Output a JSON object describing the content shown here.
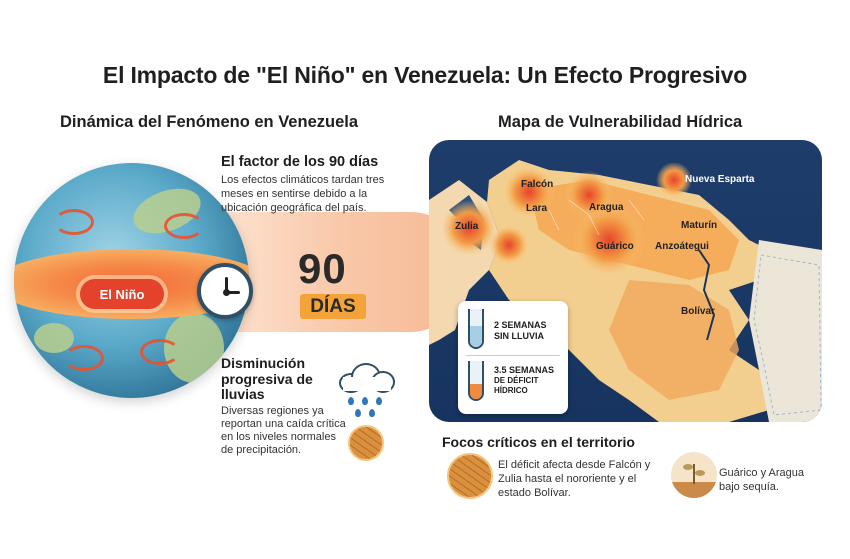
{
  "title": "El Impacto de \"El Niño\" en Venezuela: Un Efecto Progresivo",
  "left_subtitle": "Dinámica del Fenómeno en Venezuela",
  "right_subtitle": "Mapa de Vulnerabilidad Hídrica",
  "globe_label": "El Niño",
  "factor": {
    "title": "El factor de los 90 días",
    "body": "Los efectos climáticos tardan tres meses en sentirse debido a la ubicación geográfica del país."
  },
  "big_number": "90",
  "big_unit": "DÍAS",
  "decrease": {
    "title": "Disminución progresiva de lluvias",
    "body": "Diversas regiones ya reportan una caída crítica en los niveles normales de precipitación."
  },
  "map": {
    "labels": {
      "falcon": "Falcón",
      "nueva_esparta": "Nueva Esparta",
      "lara": "Lara",
      "aragua": "Aragua",
      "zulia": "Zulia",
      "maturin": "Maturín",
      "guarico": "Guárico",
      "anzoategui": "Anzoátegui",
      "bolivar": "Bolívar"
    },
    "info": {
      "line1": "2 SEMANAS",
      "line1b": "SIN LLUVIA",
      "line2": "3.5 SEMANAS",
      "line2b": "DE DÉFICIT",
      "line2c": "HÍDRICO"
    }
  },
  "focos": {
    "title": "Focos críticos en el territorio",
    "body": "El déficit afecta desde Falcón y Zulia hasta el nororiente y el estado Bolívar.",
    "side": "Guárico y Aragua bajo sequía."
  },
  "colors": {
    "accent_red": "#e4422a",
    "accent_orange": "#f3a33a",
    "ocean": "#1e3d6b"
  }
}
